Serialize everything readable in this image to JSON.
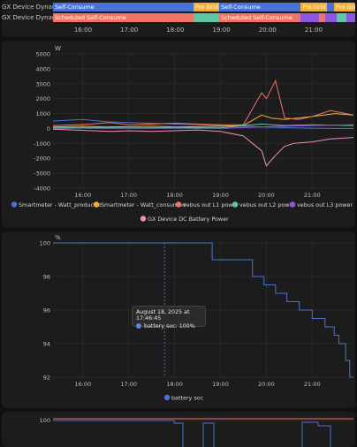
{
  "colors": {
    "blue": "#4a72d6",
    "orange": "#f2b03a",
    "red": "#f07466",
    "teal": "#5fc7a6",
    "purple": "#8e57e0",
    "pink": "#f08dbf",
    "grid": "#2e2e2e",
    "text": "#bfbfbf"
  },
  "timeline": {
    "rows": [
      {
        "label": "GX Device Dynamic ESS...",
        "segments": [
          {
            "label": "Self-Consume",
            "color": "#4a72d6",
            "from": 0,
            "to": 0.465
          },
          {
            "label": "Pro Grid",
            "color": "#f2b03a",
            "from": 0.465,
            "to": 0.55
          },
          {
            "label": "Self-Consume",
            "color": "#4a72d6",
            "from": 0.55,
            "to": 0.82
          },
          {
            "label": "Pro Grid",
            "color": "#f2b03a",
            "from": 0.82,
            "to": 0.905
          },
          {
            "label": "",
            "color": "#4a72d6",
            "from": 0.905,
            "to": 0.93
          },
          {
            "label": "Pro Grid",
            "color": "#f2b03a",
            "from": 0.93,
            "to": 1.0
          }
        ]
      },
      {
        "label": "GX Device Dynamic ESS...",
        "segments": [
          {
            "label": "Scheduled Self-Consume",
            "color": "#f07466",
            "from": 0,
            "to": 0.465
          },
          {
            "label": "",
            "color": "#5fc7a6",
            "from": 0.465,
            "to": 0.55
          },
          {
            "label": "Scheduled Self-Consume",
            "color": "#f07466",
            "from": 0.55,
            "to": 0.82
          },
          {
            "label": "",
            "color": "#8e57e0",
            "from": 0.82,
            "to": 0.88
          },
          {
            "label": "",
            "color": "#f07466",
            "from": 0.88,
            "to": 0.9
          },
          {
            "label": "",
            "color": "#8e57e0",
            "from": 0.9,
            "to": 0.94
          },
          {
            "label": "",
            "color": "#5fc7a6",
            "from": 0.94,
            "to": 0.97
          },
          {
            "label": "",
            "color": "#8e57e0",
            "from": 0.97,
            "to": 1.0
          }
        ]
      }
    ],
    "x_ticks": [
      "16:00",
      "17:00",
      "18:00",
      "19:00",
      "20:00",
      "21:00"
    ]
  },
  "chart_data": [
    {
      "type": "line",
      "unit": "W",
      "ylim": [
        -4000,
        5000
      ],
      "y_ticks": [
        5000,
        4000,
        3000,
        2000,
        1000,
        0,
        -1000,
        -2000,
        -3000,
        -4000
      ],
      "x_ticks": [
        "16:00",
        "17:00",
        "18:00",
        "19:00",
        "20:00",
        "21:00"
      ],
      "xlim_hours": [
        15.35,
        21.9
      ],
      "grid": true,
      "legend_position": "bottom",
      "series": [
        {
          "name": "Smartmeter - Watt_produced",
          "color": "#4a72d6",
          "x": [
            15.35,
            16.0,
            16.5,
            17.0,
            17.5,
            18.0,
            18.5,
            19.0,
            19.5,
            19.9,
            20.2,
            20.5,
            21.0,
            21.5,
            21.9
          ],
          "y": [
            500,
            600,
            450,
            400,
            350,
            300,
            250,
            200,
            150,
            100,
            80,
            50,
            20,
            0,
            0
          ]
        },
        {
          "name": "Smartmeter - Watt_consumed",
          "color": "#f2b03a",
          "x": [
            15.35,
            16.0,
            16.5,
            17.0,
            17.5,
            18.0,
            18.5,
            19.0,
            19.5,
            19.9,
            20.1,
            20.4,
            21.0,
            21.5,
            21.9
          ],
          "y": [
            100,
            150,
            100,
            120,
            150,
            100,
            120,
            150,
            200,
            900,
            700,
            600,
            800,
            1000,
            900
          ]
        },
        {
          "name": "vebus out L1 power",
          "color": "#f07466",
          "x": [
            15.35,
            15.8,
            16.2,
            16.6,
            17.0,
            17.5,
            18.0,
            18.5,
            19.0,
            19.5,
            19.9,
            20.0,
            20.2,
            20.4,
            20.7,
            21.0,
            21.4,
            21.9
          ],
          "y": [
            200,
            250,
            300,
            400,
            250,
            300,
            350,
            300,
            250,
            250,
            2400,
            2000,
            3200,
            700,
            600,
            800,
            1200,
            900
          ]
        },
        {
          "name": "vebus out L2 power",
          "color": "#5fc7a6",
          "x": [
            15.35,
            16.0,
            17.0,
            18.0,
            19.0,
            19.9,
            20.4,
            21.0,
            21.9
          ],
          "y": [
            50,
            60,
            40,
            60,
            50,
            300,
            200,
            250,
            200
          ]
        },
        {
          "name": "vebus out L3 power",
          "color": "#8e57e0",
          "x": [
            15.35,
            16.0,
            17.0,
            18.0,
            19.0,
            19.9,
            20.4,
            21.0,
            21.9
          ],
          "y": [
            0,
            20,
            10,
            20,
            10,
            100,
            150,
            200,
            250
          ]
        },
        {
          "name": "GX Device DC Battery Power",
          "color": "#f08dbf",
          "x": [
            15.35,
            15.8,
            16.2,
            16.6,
            17.0,
            17.5,
            18.0,
            18.5,
            19.0,
            19.5,
            19.9,
            20.0,
            20.2,
            20.4,
            20.6,
            21.0,
            21.4,
            21.9
          ],
          "y": [
            -50,
            -100,
            -150,
            -200,
            -150,
            -200,
            -150,
            -100,
            -200,
            -500,
            -1500,
            -2500,
            -1800,
            -1200,
            -1000,
            -900,
            -700,
            -600
          ]
        }
      ]
    },
    {
      "type": "line",
      "unit": "%",
      "ylim": [
        92,
        100
      ],
      "y_ticks": [
        100,
        98,
        96,
        94,
        92
      ],
      "x_ticks": [
        "16:00",
        "17:00",
        "18:00",
        "19:00",
        "20:00",
        "21:00"
      ],
      "xlim_hours": [
        15.35,
        21.9
      ],
      "grid": true,
      "legend_position": "bottom",
      "series": [
        {
          "name": "battery soc",
          "color": "#4a72d6",
          "x": [
            15.35,
            18.82,
            18.82,
            19.7,
            19.7,
            19.95,
            19.95,
            20.2,
            20.2,
            20.45,
            20.45,
            20.72,
            20.72,
            21.0,
            21.0,
            21.28,
            21.28,
            21.48,
            21.48,
            21.58,
            21.58,
            21.73,
            21.73,
            21.82,
            21.82,
            21.9
          ],
          "y": [
            100,
            100,
            99,
            99,
            98,
            98,
            97.5,
            97.5,
            97,
            97,
            96.5,
            96.5,
            96,
            96,
            95.5,
            95.5,
            95,
            95,
            94.5,
            94.5,
            94,
            94,
            93,
            93,
            92,
            92
          ]
        }
      ]
    }
  ],
  "tooltip": {
    "time": "August 18, 2025 at 17:46:45",
    "value": "battery soc: 100%",
    "cursor_hour": 17.78
  },
  "panel3": {
    "y_tick": "100"
  }
}
